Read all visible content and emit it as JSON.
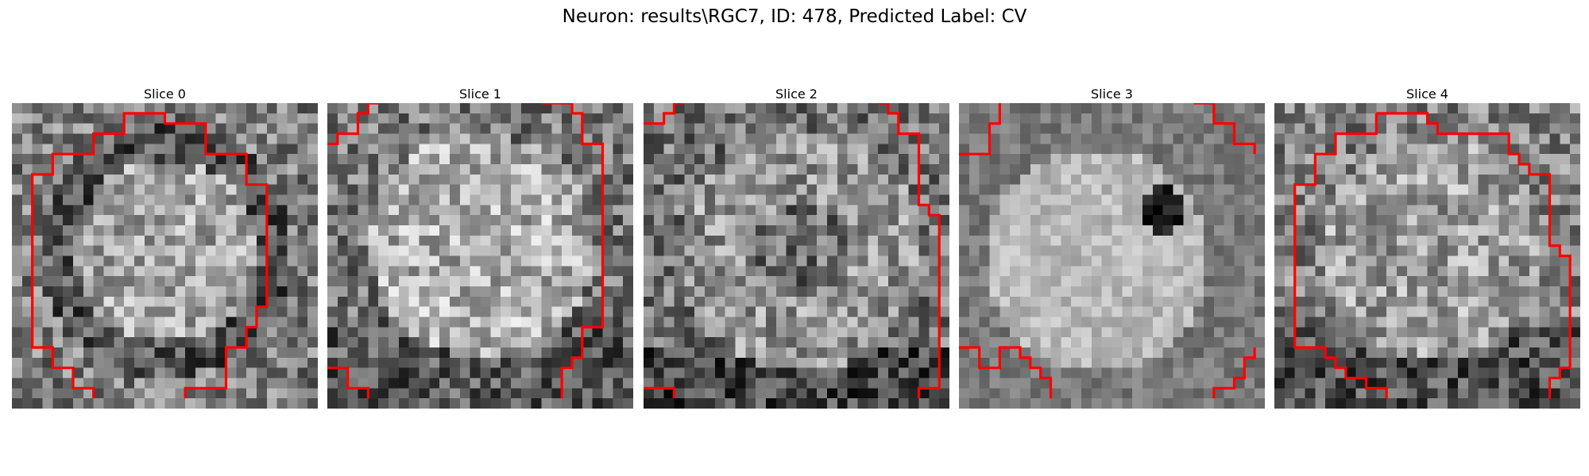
{
  "figure": {
    "title": "Neuron: results\\RGC7, ID: 478, Predicted Label: CV"
  },
  "panels": [
    {
      "title": "Slice 0"
    },
    {
      "title": "Slice 1"
    },
    {
      "title": "Slice 2"
    },
    {
      "title": "Slice 3"
    },
    {
      "title": "Slice 4"
    }
  ],
  "colors": {
    "contour": "#ff0000",
    "background": "#ffffff"
  }
}
